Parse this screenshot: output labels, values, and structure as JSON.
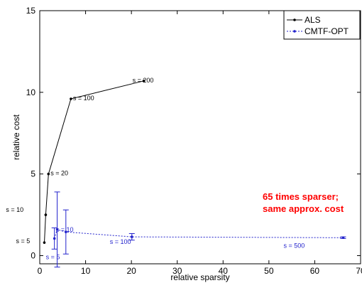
{
  "chart_data": {
    "type": "line",
    "title": "",
    "xlabel": "relative sparsity",
    "ylabel": "relative cost",
    "xlim": [
      0,
      70
    ],
    "ylim": [
      -0.5,
      15
    ],
    "xticks": [
      "0",
      "10",
      "20",
      "30",
      "40",
      "50",
      "60",
      "70"
    ],
    "yticks": [
      "0",
      "5",
      "10",
      "15"
    ],
    "grid": false,
    "legend_placement": "top-right",
    "series": [
      {
        "name": "ALS",
        "color": "#000000",
        "line": "solid",
        "marker": "dot",
        "points": [
          {
            "x": 1.0,
            "y": 0.8
          },
          {
            "x": 1.3,
            "y": 2.5
          },
          {
            "x": 1.9,
            "y": 5.0
          },
          {
            "x": 6.8,
            "y": 9.6
          },
          {
            "x": 22.7,
            "y": 10.7
          }
        ]
      },
      {
        "name": "CMTF-OPT",
        "color": "#2222cc",
        "line": "dashed",
        "marker": "dot",
        "points": [
          {
            "x": 3.2,
            "y": 1.05,
            "err": 0.65
          },
          {
            "x": 3.8,
            "y": 1.6,
            "err": 2.3
          },
          {
            "x": 5.7,
            "y": 1.45,
            "err": 1.35
          },
          {
            "x": 20.1,
            "y": 1.15,
            "err": 0.2
          },
          {
            "x": 66.2,
            "y": 1.1,
            "err": 0.05
          }
        ]
      }
    ],
    "annotations": [
      {
        "text": "s = 200",
        "x": 22.7,
        "y": 10.7,
        "color": "#000000"
      },
      {
        "text": "s = 100",
        "x": 6.8,
        "y": 9.6,
        "color": "#000000"
      },
      {
        "text": "s = 20",
        "x": 1.9,
        "y": 5.0,
        "color": "#000000"
      },
      {
        "text": "s = 10",
        "x": 1.3,
        "y": 2.5,
        "color": "#000000"
      },
      {
        "text": "s = 5",
        "x": 1.0,
        "y": 0.8,
        "color": "#000000"
      },
      {
        "text": "s = 5",
        "x": 3.2,
        "y": 1.05,
        "color": "#2222cc"
      },
      {
        "text": "s = 10",
        "x": 5.7,
        "y": 1.45,
        "color": "#2222cc"
      },
      {
        "text": "s = 100",
        "x": 20.1,
        "y": 1.15,
        "color": "#2222cc"
      },
      {
        "text": "s = 500",
        "x": 66.2,
        "y": 1.1,
        "color": "#2222cc"
      }
    ],
    "callout": {
      "lines": [
        "65 times sparser;",
        "same approx. cost"
      ],
      "color": "#ff0000"
    }
  }
}
